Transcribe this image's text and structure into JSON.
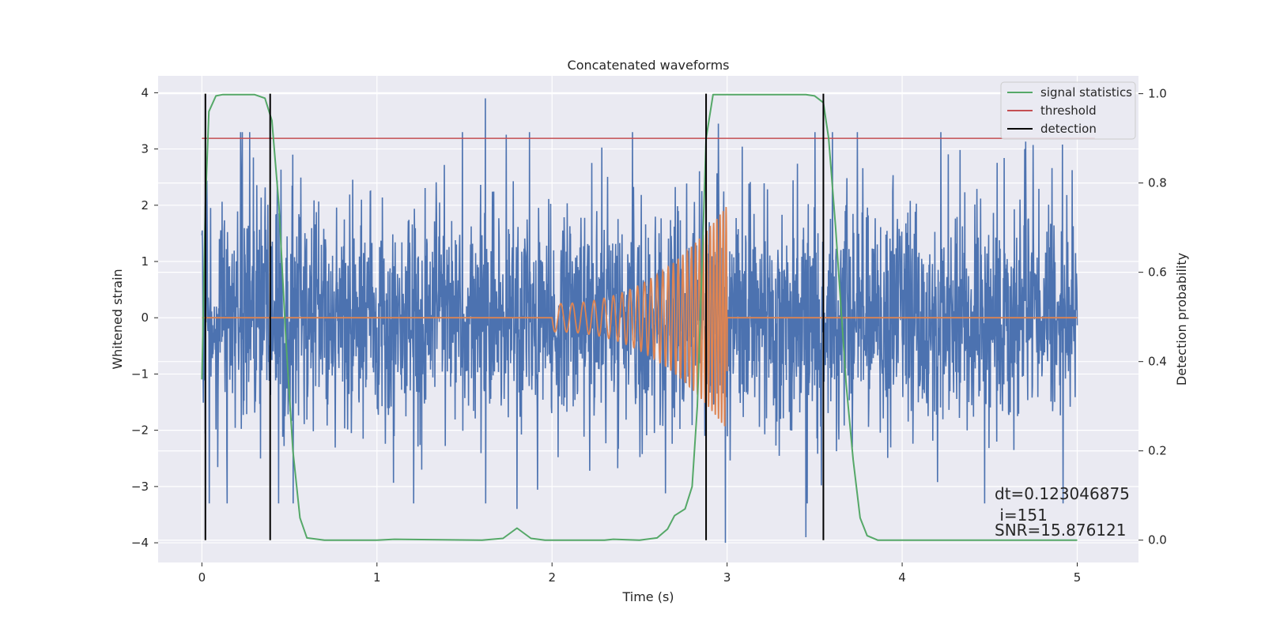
{
  "chart_data": {
    "type": "line",
    "title": "Concatenated waveforms",
    "xlabel": "Time (s)",
    "ylabel": "Whitened strain",
    "y2label": "Detection probability",
    "xlim": [
      -0.25,
      5.35
    ],
    "ylim": [
      -4.35,
      4.3
    ],
    "y2lim": [
      -0.05,
      1.04
    ],
    "xticks": [
      0,
      1,
      2,
      3,
      4,
      5
    ],
    "yticks": [
      -4,
      -3,
      -2,
      -1,
      0,
      1,
      2,
      3,
      4
    ],
    "y2ticks": [
      0.0,
      0.2,
      0.4,
      0.6,
      0.8,
      1.0
    ],
    "y2tick_labels": [
      "0.0",
      "0.2",
      "0.4",
      "0.6",
      "0.8",
      "1.0"
    ],
    "ytick_labels": [
      "−4",
      "−3",
      "−2",
      "−1",
      "0",
      "1",
      "2",
      "3",
      "4"
    ],
    "grid": true,
    "legend_position": "top-right",
    "colors": {
      "strain": "#4c72b0",
      "template": "#dd8452",
      "signal_statistics": "#55a868",
      "threshold": "#c44e52",
      "detection": "#000000",
      "axes_bg": "#eaeaf2",
      "grid": "#ffffff"
    },
    "series": [
      {
        "name": "",
        "role": "whitened strain",
        "x_range": [
          0,
          5
        ],
        "amplitude_approx": 2.2,
        "peaks": [
          {
            "x": 1.62,
            "y": 3.9
          },
          {
            "x": 2.95,
            "y": 3.45
          },
          {
            "x": 3.45,
            "y": -3.9
          },
          {
            "x": 2.99,
            "y": -4.0
          },
          {
            "x": 1.8,
            "y": -3.4
          },
          {
            "x": 0.52,
            "y": 2.9
          },
          {
            "x": 4.7,
            "y": 3.0
          }
        ]
      },
      {
        "name": "",
        "role": "injected waveform",
        "start": 2.0,
        "merger": 3.0,
        "end": 5.0,
        "start_amplitude": 0.25,
        "peak_amplitude": 2.0,
        "start_frequency_hz": 15,
        "end_frequency_hz": 60
      },
      {
        "name": "signal statistics",
        "axis": "right",
        "points": [
          [
            0.0,
            0.36
          ],
          [
            0.02,
            0.75
          ],
          [
            0.04,
            0.96
          ],
          [
            0.08,
            0.995
          ],
          [
            0.12,
            0.998
          ],
          [
            0.3,
            0.998
          ],
          [
            0.36,
            0.99
          ],
          [
            0.4,
            0.94
          ],
          [
            0.44,
            0.75
          ],
          [
            0.48,
            0.45
          ],
          [
            0.52,
            0.2
          ],
          [
            0.56,
            0.05
          ],
          [
            0.6,
            0.005
          ],
          [
            0.7,
            0.0
          ],
          [
            1.0,
            0.0
          ],
          [
            1.1,
            0.002
          ],
          [
            1.6,
            0.0
          ],
          [
            1.72,
            0.004
          ],
          [
            1.8,
            0.027
          ],
          [
            1.88,
            0.004
          ],
          [
            1.96,
            0.0
          ],
          [
            2.3,
            0.0
          ],
          [
            2.35,
            0.002
          ],
          [
            2.5,
            0.0
          ],
          [
            2.6,
            0.005
          ],
          [
            2.66,
            0.025
          ],
          [
            2.7,
            0.055
          ],
          [
            2.76,
            0.07
          ],
          [
            2.8,
            0.12
          ],
          [
            2.83,
            0.3
          ],
          [
            2.86,
            0.65
          ],
          [
            2.88,
            0.9
          ],
          [
            2.92,
            0.998
          ],
          [
            3.0,
            0.998
          ],
          [
            3.45,
            0.998
          ],
          [
            3.5,
            0.995
          ],
          [
            3.55,
            0.98
          ],
          [
            3.58,
            0.9
          ],
          [
            3.62,
            0.7
          ],
          [
            3.68,
            0.35
          ],
          [
            3.72,
            0.18
          ],
          [
            3.76,
            0.05
          ],
          [
            3.8,
            0.01
          ],
          [
            3.86,
            0.0
          ],
          [
            5.0,
            0.0
          ]
        ]
      },
      {
        "name": "threshold",
        "axis": "right",
        "x_range": [
          0,
          5.1
        ],
        "value": 0.9
      },
      {
        "name": "detection",
        "axis": "right",
        "x": [
          0.02,
          0.39,
          2.88,
          3.55
        ],
        "y_range": [
          0.0,
          1.0
        ]
      }
    ],
    "annotations": [
      {
        "text": "dt=0.123046875"
      },
      {
        "text": " i=151"
      },
      {
        "text": "SNR=15.876121"
      }
    ]
  }
}
